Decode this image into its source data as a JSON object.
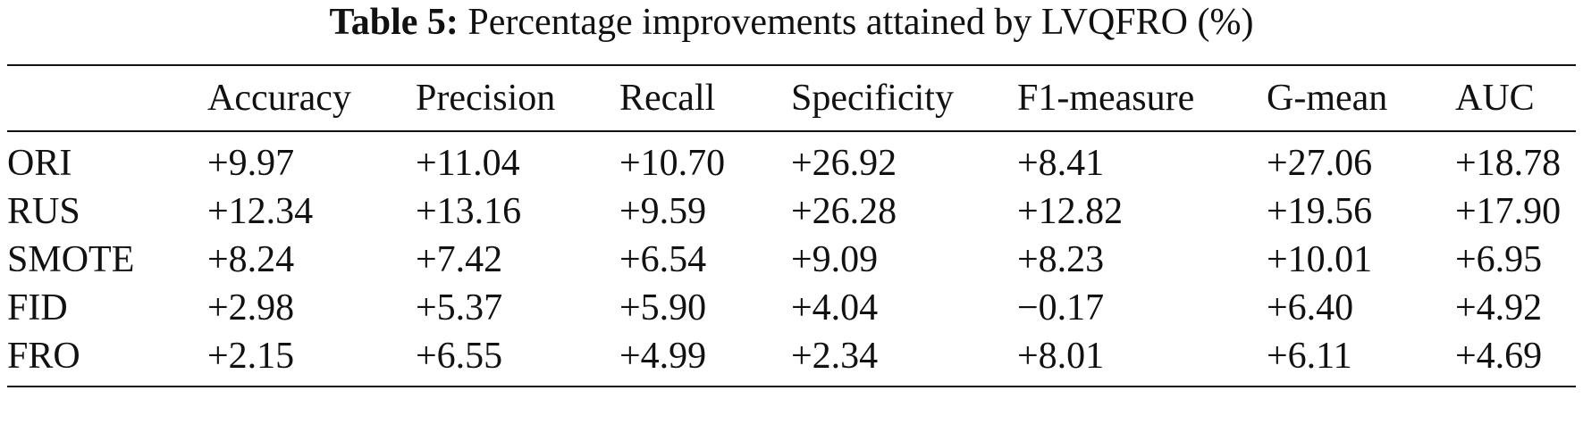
{
  "caption": {
    "label": "Table 5:",
    "text": "Percentage improvements attained by LVQFRO (%)"
  },
  "table": {
    "columns": [
      "",
      "Accuracy",
      "Precision",
      "Recall",
      "Specificity",
      "F1-measure",
      "G-mean",
      "AUC"
    ],
    "rows": [
      {
        "name": "ORI",
        "values": [
          "+9.97",
          "+11.04",
          "+10.70",
          "+26.92",
          "+8.41",
          "+27.06",
          "+18.78"
        ]
      },
      {
        "name": "RUS",
        "values": [
          "+12.34",
          "+13.16",
          "+9.59",
          "+26.28",
          "+12.82",
          "+19.56",
          "+17.90"
        ]
      },
      {
        "name": "SMOTE",
        "values": [
          "+8.24",
          "+7.42",
          "+6.54",
          "+9.09",
          "+8.23",
          "+10.01",
          "+6.95"
        ]
      },
      {
        "name": "FID",
        "values": [
          "+2.98",
          "+5.37",
          "+5.90",
          "+4.04",
          "−0.17",
          "+6.40",
          "+4.92"
        ]
      },
      {
        "name": "FRO",
        "values": [
          "+2.15",
          "+6.55",
          "+4.99",
          "+2.34",
          "+8.01",
          "+6.11",
          "+4.69"
        ]
      }
    ]
  }
}
